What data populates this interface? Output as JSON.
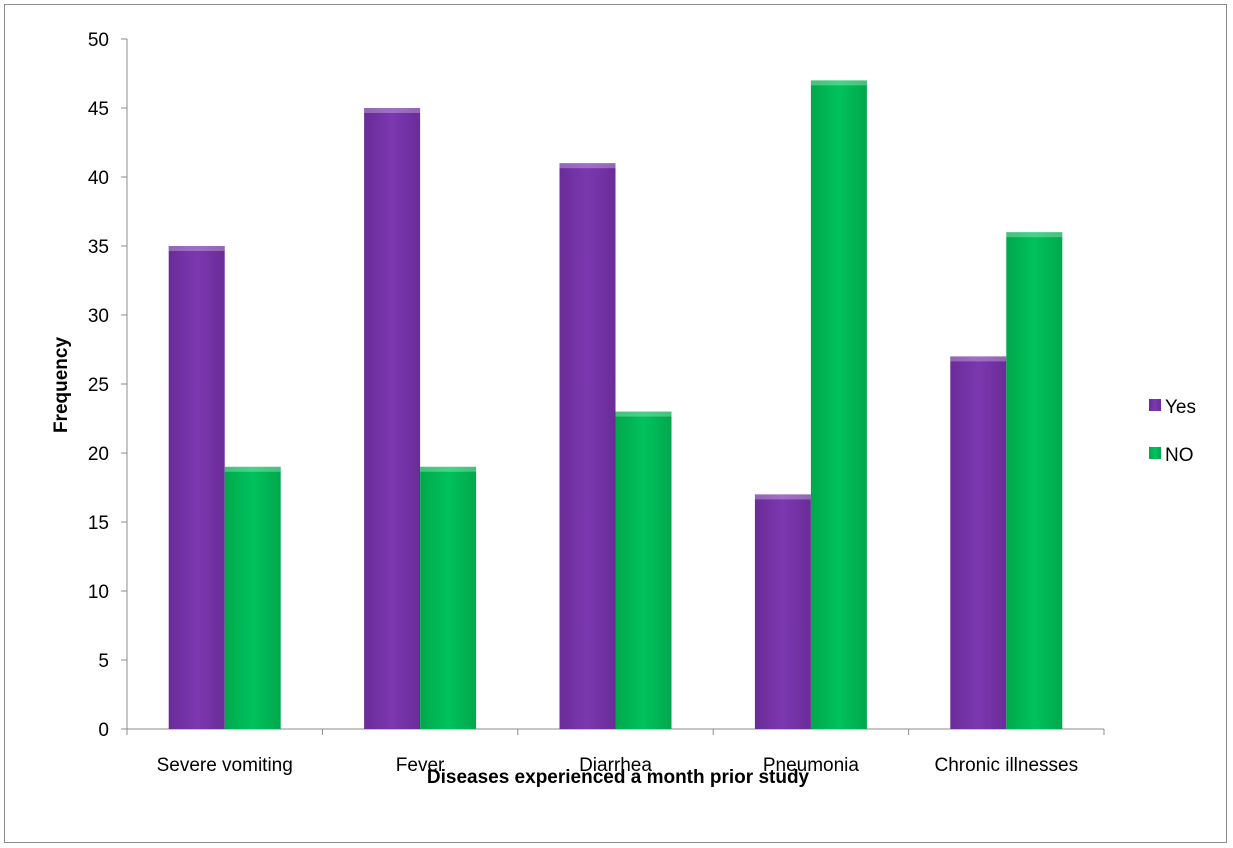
{
  "chart_data": {
    "type": "bar",
    "title": "",
    "xlabel": "Diseases experienced a month prior study",
    "ylabel": "Frequency",
    "categories": [
      "Severe vomiting",
      "Fever",
      "Diarrhea",
      "Pneumonia",
      "Chronic illnesses"
    ],
    "series": [
      {
        "name": "Yes",
        "values": [
          35,
          45,
          41,
          17,
          27
        ],
        "color": "#7030a0"
      },
      {
        "name": "NO",
        "values": [
          19,
          19,
          23,
          47,
          36
        ],
        "color": "#00b050"
      }
    ],
    "ylim": [
      0,
      50
    ],
    "yticks": [
      "0",
      "5",
      "10",
      "15",
      "20",
      "25",
      "30",
      "35",
      "40",
      "45",
      "50"
    ],
    "grid": false,
    "legend_position": "right"
  }
}
